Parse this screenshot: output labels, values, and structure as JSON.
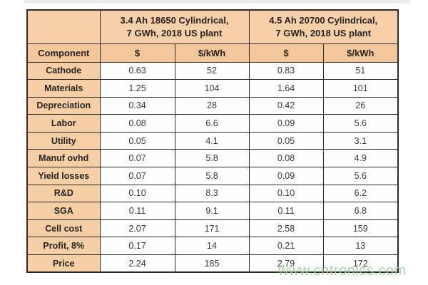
{
  "table": {
    "group_headers": [
      {
        "line1": "3.4 Ah 18650 Cylindrical,",
        "line2": "7 GWh, 2018 US plant"
      },
      {
        "line1": "4.5 Ah 20700 Cylindrical,",
        "line2": "7 GWh, 2018 US plant"
      }
    ],
    "column_headers": [
      "Component",
      "$",
      "$/kWh",
      "$",
      "$/kWh"
    ],
    "rows": [
      {
        "label": "Cathode",
        "values": [
          "0.63",
          "52",
          "0.83",
          "51"
        ]
      },
      {
        "label": "Materials",
        "values": [
          "1.25",
          "104",
          "1.64",
          "101"
        ]
      },
      {
        "label": "Depreciation",
        "values": [
          "0.34",
          "28",
          "0.42",
          "26"
        ]
      },
      {
        "label": "Labor",
        "values": [
          "0.08",
          "6.6",
          "0.09",
          "5.6"
        ]
      },
      {
        "label": "Utility",
        "values": [
          "0.05",
          "4.1",
          "0.05",
          "3.1"
        ]
      },
      {
        "label": "Manuf ovhd",
        "values": [
          "0.07",
          "5.8",
          "0.08",
          "4.9"
        ]
      },
      {
        "label": "Yield losses",
        "values": [
          "0.07",
          "5.8",
          "0.09",
          "5.6"
        ]
      },
      {
        "label": "R&D",
        "values": [
          "0.10",
          "8.3",
          "0.10",
          "6.2"
        ]
      },
      {
        "label": "SGA",
        "values": [
          "0.11",
          "9.1",
          "0.11",
          "6.8"
        ]
      },
      {
        "label": "Cell cost",
        "values": [
          "2.07",
          "171",
          "2.58",
          "159"
        ]
      },
      {
        "label": "Profit, 8%",
        "values": [
          "0.17",
          "14",
          "0.21",
          "13"
        ]
      },
      {
        "label": "Price",
        "values": [
          "2.24",
          "185",
          "2.79",
          "172"
        ]
      }
    ],
    "colors": {
      "header_bg": "#f7d0a9",
      "subheader_bg": "#f4c79a",
      "label_bg": "#f7cfa6",
      "border": "#2e2c2a",
      "watermark": "#9ed29b"
    }
  },
  "watermark": {
    "text": "www.cntronics.com"
  },
  "chart_data": {
    "type": "table",
    "title": "Li-ion cell cost breakdown, 7 GWh 2018 US plant",
    "column_groups": [
      "3.4 Ah 18650 Cylindrical, 7 GWh, 2018 US plant",
      "4.5 Ah 20700 Cylindrical, 7 GWh, 2018 US plant"
    ],
    "columns": [
      "Component",
      "$ (18650)",
      "$/kWh (18650)",
      "$ (20700)",
      "$/kWh (20700)"
    ],
    "rows": [
      [
        "Cathode",
        0.63,
        52,
        0.83,
        51
      ],
      [
        "Materials",
        1.25,
        104,
        1.64,
        101
      ],
      [
        "Depreciation",
        0.34,
        28,
        0.42,
        26
      ],
      [
        "Labor",
        0.08,
        6.6,
        0.09,
        5.6
      ],
      [
        "Utility",
        0.05,
        4.1,
        0.05,
        3.1
      ],
      [
        "Manuf ovhd",
        0.07,
        5.8,
        0.08,
        4.9
      ],
      [
        "Yield losses",
        0.07,
        5.8,
        0.09,
        5.6
      ],
      [
        "R&D",
        0.1,
        8.3,
        0.1,
        6.2
      ],
      [
        "SGA",
        0.11,
        9.1,
        0.11,
        6.8
      ],
      [
        "Cell cost",
        2.07,
        171,
        2.58,
        159
      ],
      [
        "Profit, 8%",
        0.17,
        14,
        0.21,
        13
      ],
      [
        "Price",
        2.24,
        185,
        2.79,
        172
      ]
    ]
  }
}
